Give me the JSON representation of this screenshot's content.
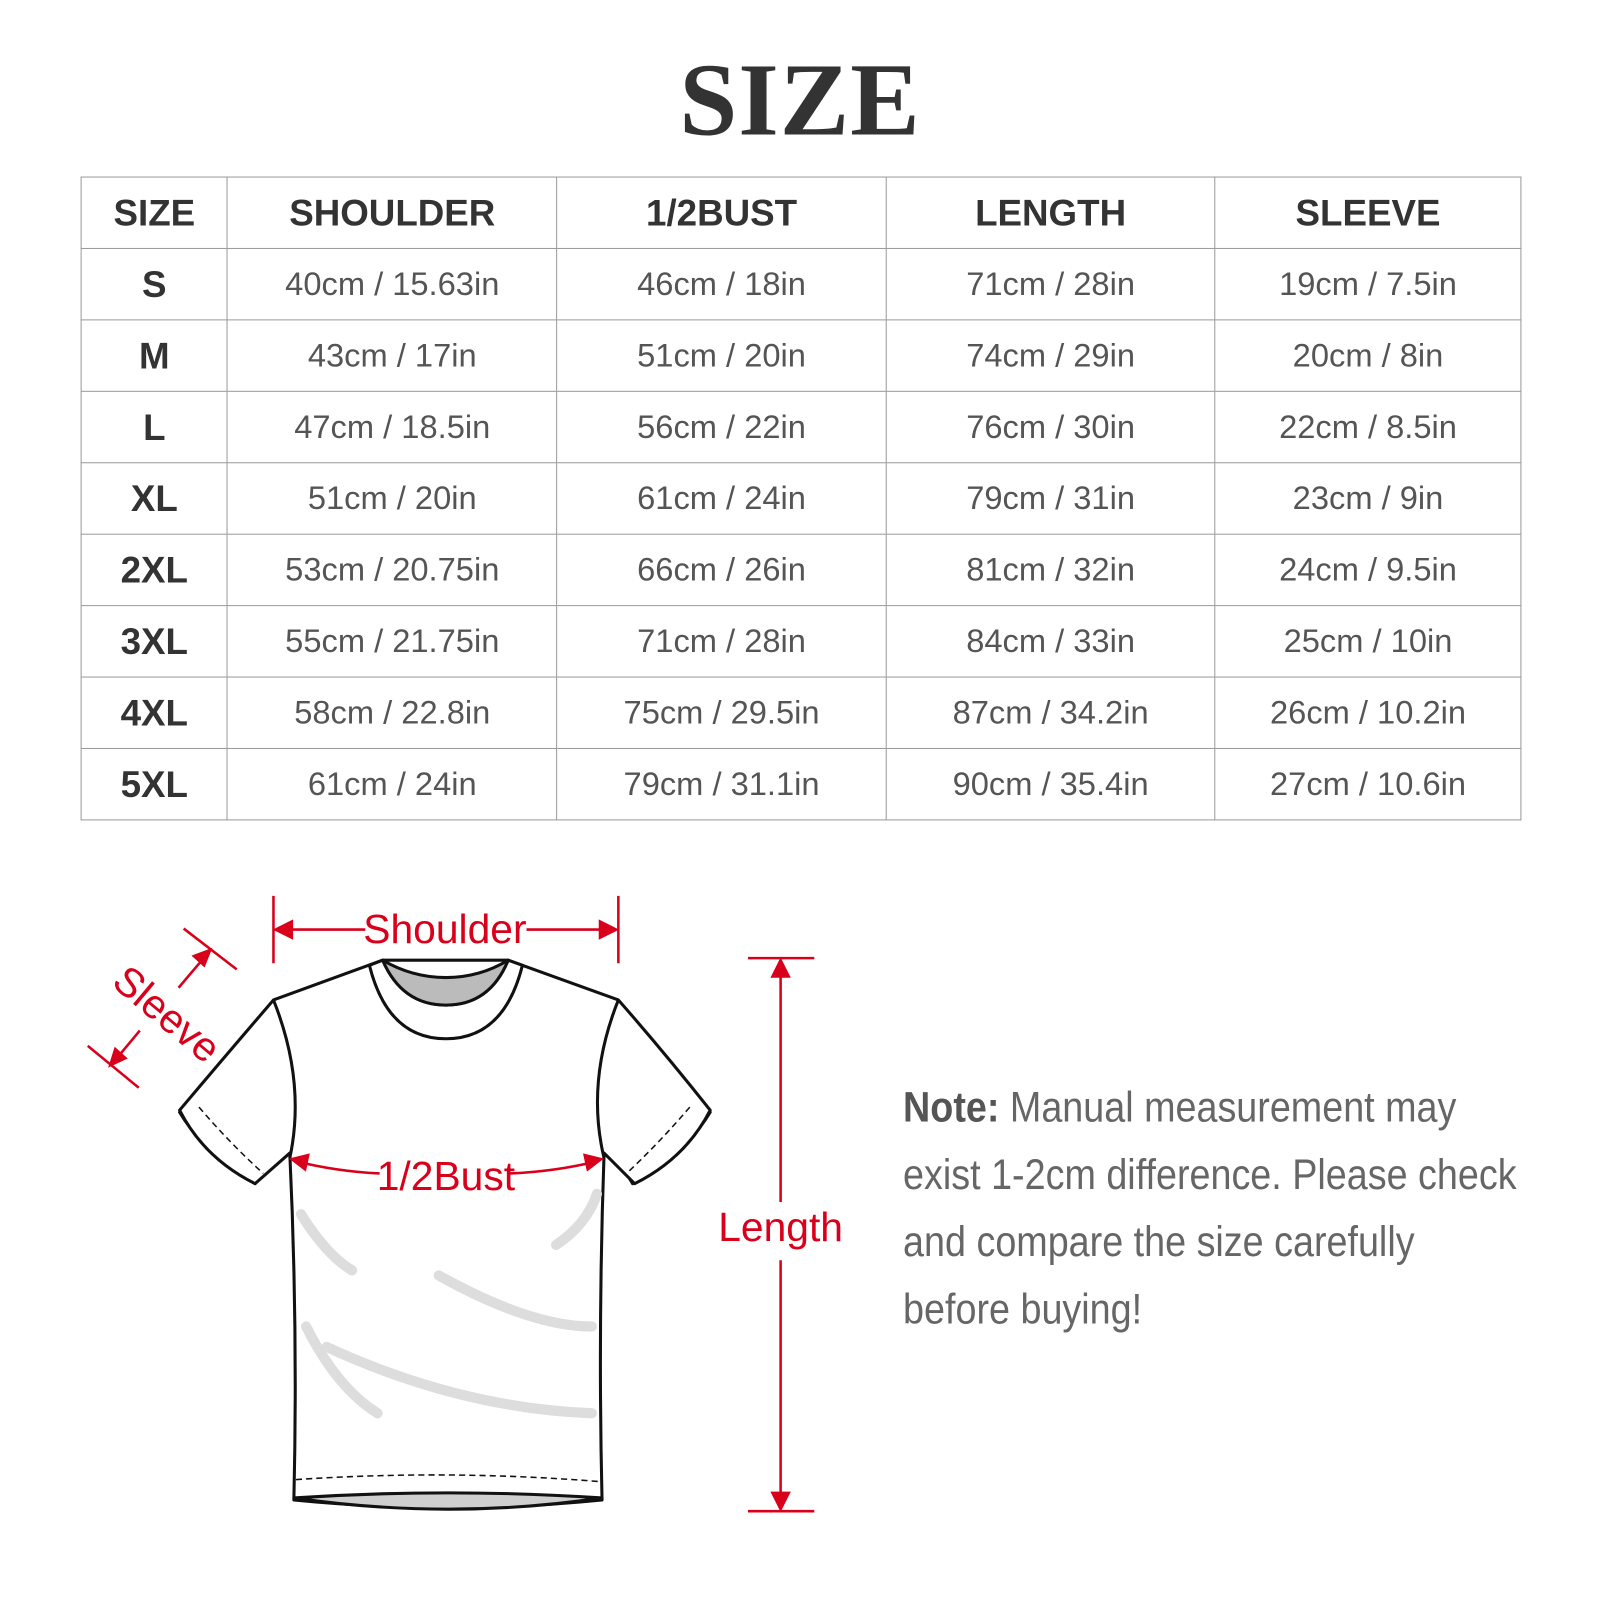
{
  "title": "SIZE",
  "table": {
    "headers": [
      "SIZE",
      "SHOULDER",
      "1/2BUST",
      "LENGTH",
      "SLEEVE"
    ],
    "rows": [
      [
        "S",
        "40cm / 15.63in",
        "46cm / 18in",
        "71cm / 28in",
        "19cm / 7.5in"
      ],
      [
        "M",
        "43cm / 17in",
        "51cm / 20in",
        "74cm / 29in",
        "20cm / 8in"
      ],
      [
        "L",
        "47cm / 18.5in",
        "56cm / 22in",
        "76cm / 30in",
        "22cm / 8.5in"
      ],
      [
        "XL",
        "51cm / 20in",
        "61cm / 24in",
        "79cm / 31in",
        "23cm / 9in"
      ],
      [
        "2XL",
        "53cm / 20.75in",
        "66cm / 26in",
        "81cm / 32in",
        "24cm / 9.5in"
      ],
      [
        "3XL",
        "55cm / 21.75in",
        "71cm / 28in",
        "84cm / 33in",
        "25cm / 10in"
      ],
      [
        "4XL",
        "58cm / 22.8in",
        "75cm / 29.5in",
        "87cm / 34.2in",
        "26cm / 10.2in"
      ],
      [
        "5XL",
        "61cm / 24in",
        "79cm / 31.1in",
        "90cm / 35.4in",
        "27cm / 10.6in"
      ]
    ]
  },
  "diagram": {
    "shoulder": "Shoulder",
    "sleeve": "Sleeve",
    "bust": "1/2Bust",
    "length": "Length",
    "accent_color": "#d9001b"
  },
  "note": {
    "label": "Note:",
    "text": " Manual measurement may exist 1-2cm difference. Please check and compare the size carefully before buying!"
  }
}
